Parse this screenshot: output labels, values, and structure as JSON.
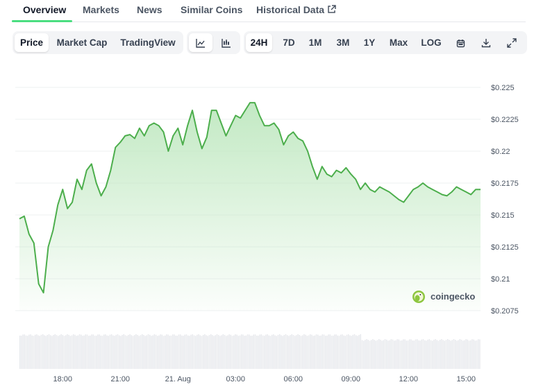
{
  "tabs": [
    {
      "label": "Overview",
      "active": true
    },
    {
      "label": "Markets"
    },
    {
      "label": "News"
    },
    {
      "label": "Similar Coins"
    },
    {
      "label": "Historical Data",
      "icon": "external-link-icon"
    }
  ],
  "toolbar": {
    "data_types": [
      {
        "label": "Price",
        "active": true
      },
      {
        "label": "Market Cap"
      },
      {
        "label": "TradingView"
      }
    ],
    "chart_type_icons": [
      "line-chart-icon",
      "candlestick-chart-icon"
    ],
    "ranges": [
      {
        "label": "24H",
        "active": true
      },
      {
        "label": "7D"
      },
      {
        "label": "1M"
      },
      {
        "label": "3M"
      },
      {
        "label": "1Y"
      },
      {
        "label": "Max"
      },
      {
        "label": "LOG"
      }
    ],
    "action_icons": [
      "calendar-icon",
      "download-icon",
      "expand-icon"
    ]
  },
  "watermark": {
    "text": "coingecko",
    "icon": "coingecko-logo-icon"
  },
  "colors": {
    "line": "#4cae4c",
    "fill_top": "#bfe8c0",
    "volume": "#e5e7eb",
    "grid": "#eef0f2",
    "accent": "#4ade80"
  },
  "chart_data": {
    "type": "area",
    "series": [
      {
        "x": [
          0,
          0.25,
          0.5,
          0.75,
          1,
          1.25,
          1.5,
          1.75,
          2,
          2.25,
          2.5,
          2.75,
          3,
          3.25,
          3.5,
          3.75,
          4,
          4.25,
          4.5,
          4.75,
          5,
          5.25,
          5.5,
          5.75,
          6,
          6.25,
          6.5,
          6.75,
          7,
          7.25,
          7.5,
          7.75,
          8,
          8.25,
          8.5,
          8.75,
          9,
          9.25,
          9.5,
          9.75,
          10,
          10.25,
          10.5,
          10.75,
          11,
          11.25,
          11.5,
          11.75,
          12,
          12.25,
          12.5,
          12.75,
          13,
          13.25,
          13.5,
          13.75,
          14,
          14.25,
          14.5,
          14.75,
          15,
          15.25,
          15.5,
          15.75,
          16,
          16.25,
          16.5,
          16.75,
          17,
          17.25,
          17.5,
          17.75,
          18,
          18.25,
          18.5,
          18.75,
          19,
          19.25,
          19.5,
          19.75,
          20,
          20.25,
          20.5,
          20.75,
          21,
          21.25,
          21.5,
          21.75,
          22,
          22.25,
          22.5,
          22.75,
          23,
          23.25,
          23.5,
          23.75,
          24
        ],
        "y": [
          0.2147,
          0.2149,
          0.2135,
          0.2128,
          0.2096,
          0.2089,
          0.2125,
          0.2138,
          0.2158,
          0.217,
          0.2155,
          0.216,
          0.2178,
          0.217,
          0.2185,
          0.219,
          0.2175,
          0.2165,
          0.2172,
          0.2185,
          0.2203,
          0.2207,
          0.2212,
          0.2213,
          0.221,
          0.2218,
          0.2212,
          0.222,
          0.2222,
          0.222,
          0.2215,
          0.22,
          0.2212,
          0.2218,
          0.2205,
          0.222,
          0.2232,
          0.2215,
          0.2202,
          0.2211,
          0.2232,
          0.2232,
          0.2222,
          0.2212,
          0.222,
          0.2228,
          0.2226,
          0.2232,
          0.2238,
          0.2238,
          0.2228,
          0.222,
          0.222,
          0.2222,
          0.2217,
          0.2205,
          0.2212,
          0.2215,
          0.221,
          0.2208,
          0.22,
          0.2188,
          0.2178,
          0.2188,
          0.2182,
          0.218,
          0.2185,
          0.2183,
          0.2187,
          0.2182,
          0.2178,
          0.217,
          0.2175,
          0.217,
          0.2168,
          0.2172,
          0.217,
          0.2168,
          0.2165,
          0.2162,
          0.216,
          0.2165,
          0.217,
          0.2172,
          0.2175,
          0.2172,
          0.217,
          0.2168,
          0.2166,
          0.2165,
          0.2168,
          0.2172,
          0.217,
          0.2168,
          0.2166,
          0.217,
          0.217
        ]
      }
    ],
    "x_ticks": [
      {
        "label": "18:00",
        "x": 2.25
      },
      {
        "label": "21:00",
        "x": 5.25
      },
      {
        "label": "21. Aug",
        "x": 8.25
      },
      {
        "label": "03:00",
        "x": 11.25
      },
      {
        "label": "06:00",
        "x": 14.25
      },
      {
        "label": "09:00",
        "x": 17.25
      },
      {
        "label": "12:00",
        "x": 20.25
      },
      {
        "label": "15:00",
        "x": 23.25
      }
    ],
    "y_ticks": [
      {
        "label": "$0.225",
        "y": 0.225
      },
      {
        "label": "$0.2225",
        "y": 0.2225
      },
      {
        "label": "$0.22",
        "y": 0.22
      },
      {
        "label": "$0.2175",
        "y": 0.2175
      },
      {
        "label": "$0.215",
        "y": 0.215
      },
      {
        "label": "$0.2125",
        "y": 0.2125
      },
      {
        "label": "$0.21",
        "y": 0.21
      },
      {
        "label": "$0.2075",
        "y": 0.2075
      }
    ],
    "ylim": [
      0.2075,
      0.225
    ],
    "xlim": [
      0,
      24
    ],
    "grid": true,
    "volume_bars": true
  }
}
